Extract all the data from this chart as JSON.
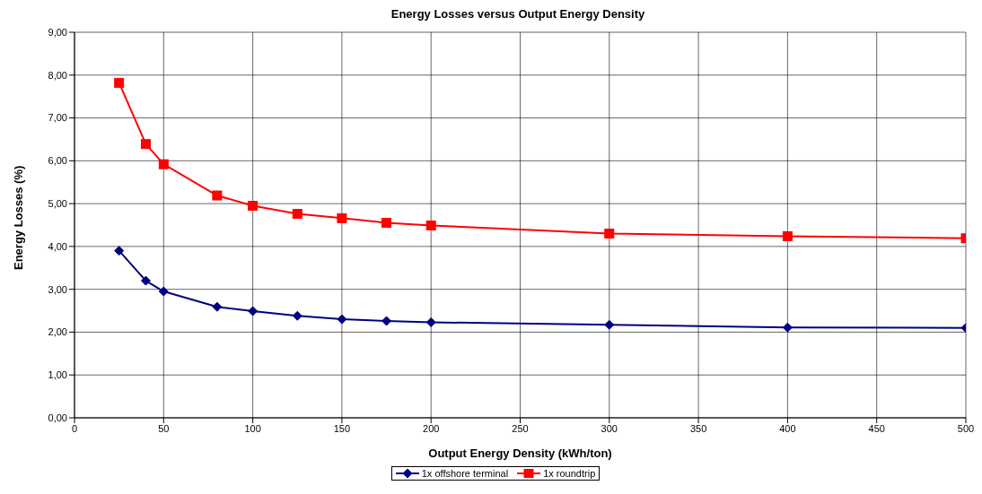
{
  "chart_data": {
    "type": "line",
    "title": "Energy Losses versus Output Energy Density",
    "xlabel": "Output Energy Density (kWh/ton)",
    "ylabel": "Energy Losses  (%)",
    "x": [
      25,
      40,
      50,
      80,
      100,
      125,
      150,
      175,
      200,
      300,
      400,
      500
    ],
    "series": [
      {
        "name": "1x offshore terminal",
        "color": "#000080",
        "marker": "diamond",
        "values": [
          3.9,
          3.2,
          2.95,
          2.59,
          2.49,
          2.38,
          2.3,
          2.26,
          2.23,
          2.17,
          2.11,
          2.1
        ]
      },
      {
        "name": "1x roundtrip",
        "color": "#ff0000",
        "marker": "square",
        "values": [
          7.82,
          6.39,
          5.92,
          5.19,
          4.95,
          4.76,
          4.66,
          4.55,
          4.49,
          4.3,
          4.24,
          4.19
        ]
      }
    ],
    "xlim": [
      0,
      500
    ],
    "xticks": [
      0,
      50,
      100,
      150,
      200,
      250,
      300,
      350,
      400,
      450,
      500
    ],
    "ylim": [
      0,
      9
    ],
    "yticks": [
      {
        "value": 0,
        "label": "0,00"
      },
      {
        "value": 1,
        "label": "1,00"
      },
      {
        "value": 2,
        "label": "2,00"
      },
      {
        "value": 3,
        "label": "3,00"
      },
      {
        "value": 4,
        "label": "4,00"
      },
      {
        "value": 5,
        "label": "5,00"
      },
      {
        "value": 6,
        "label": "6,00"
      },
      {
        "value": 7,
        "label": "7,00"
      },
      {
        "value": 8,
        "label": "8,00"
      },
      {
        "value": 9,
        "label": "9,00"
      }
    ],
    "grid": true,
    "legend": "bottom",
    "line_style": "solid"
  }
}
